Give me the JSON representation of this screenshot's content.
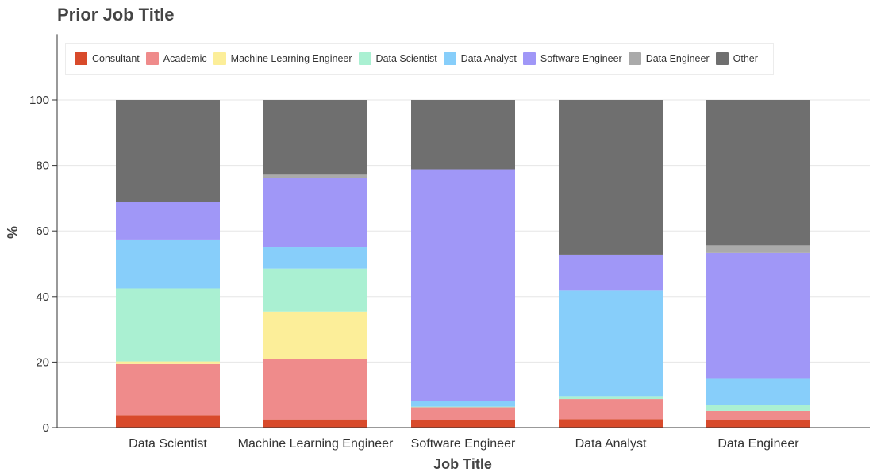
{
  "chart_data": {
    "type": "bar",
    "stacked": true,
    "title": "Prior Job Title",
    "xlabel": "Job Title",
    "ylabel": "%",
    "ylim": [
      0,
      120
    ],
    "yticks": [
      0,
      20,
      40,
      60,
      80,
      100
    ],
    "grid": true,
    "legend_position": "top",
    "categories": [
      "Data Scientist",
      "Machine Learning Engineer",
      "Software Engineer",
      "Data Analyst",
      "Data Engineer"
    ],
    "series": [
      {
        "name": "Consultant",
        "color": "#d84a2b",
        "values": [
          3.8,
          2.5,
          2.2,
          2.6,
          2.2
        ]
      },
      {
        "name": "Academic",
        "color": "#ef8b8b",
        "values": [
          15.6,
          18.5,
          4.0,
          6.1,
          2.9
        ]
      },
      {
        "name": "Machine Learning Engineer",
        "color": "#fcee99",
        "values": [
          0.8,
          14.4,
          0.0,
          0.0,
          0.0
        ]
      },
      {
        "name": "Data Scientist",
        "color": "#aaf0d2",
        "values": [
          22.3,
          13.1,
          0.2,
          0.9,
          1.8
        ]
      },
      {
        "name": "Data Analyst",
        "color": "#87cefa",
        "values": [
          14.9,
          6.7,
          1.7,
          32.2,
          8.0
        ]
      },
      {
        "name": "Software Engineer",
        "color": "#a097f7",
        "values": [
          11.6,
          20.9,
          70.7,
          11.0,
          38.4
        ]
      },
      {
        "name": "Data Engineer",
        "color": "#aaaaaa",
        "values": [
          0.0,
          1.3,
          0.0,
          0.0,
          2.3
        ]
      },
      {
        "name": "Other",
        "color": "#6f6f6f",
        "values": [
          31.0,
          22.6,
          21.2,
          47.2,
          44.4
        ]
      }
    ]
  }
}
